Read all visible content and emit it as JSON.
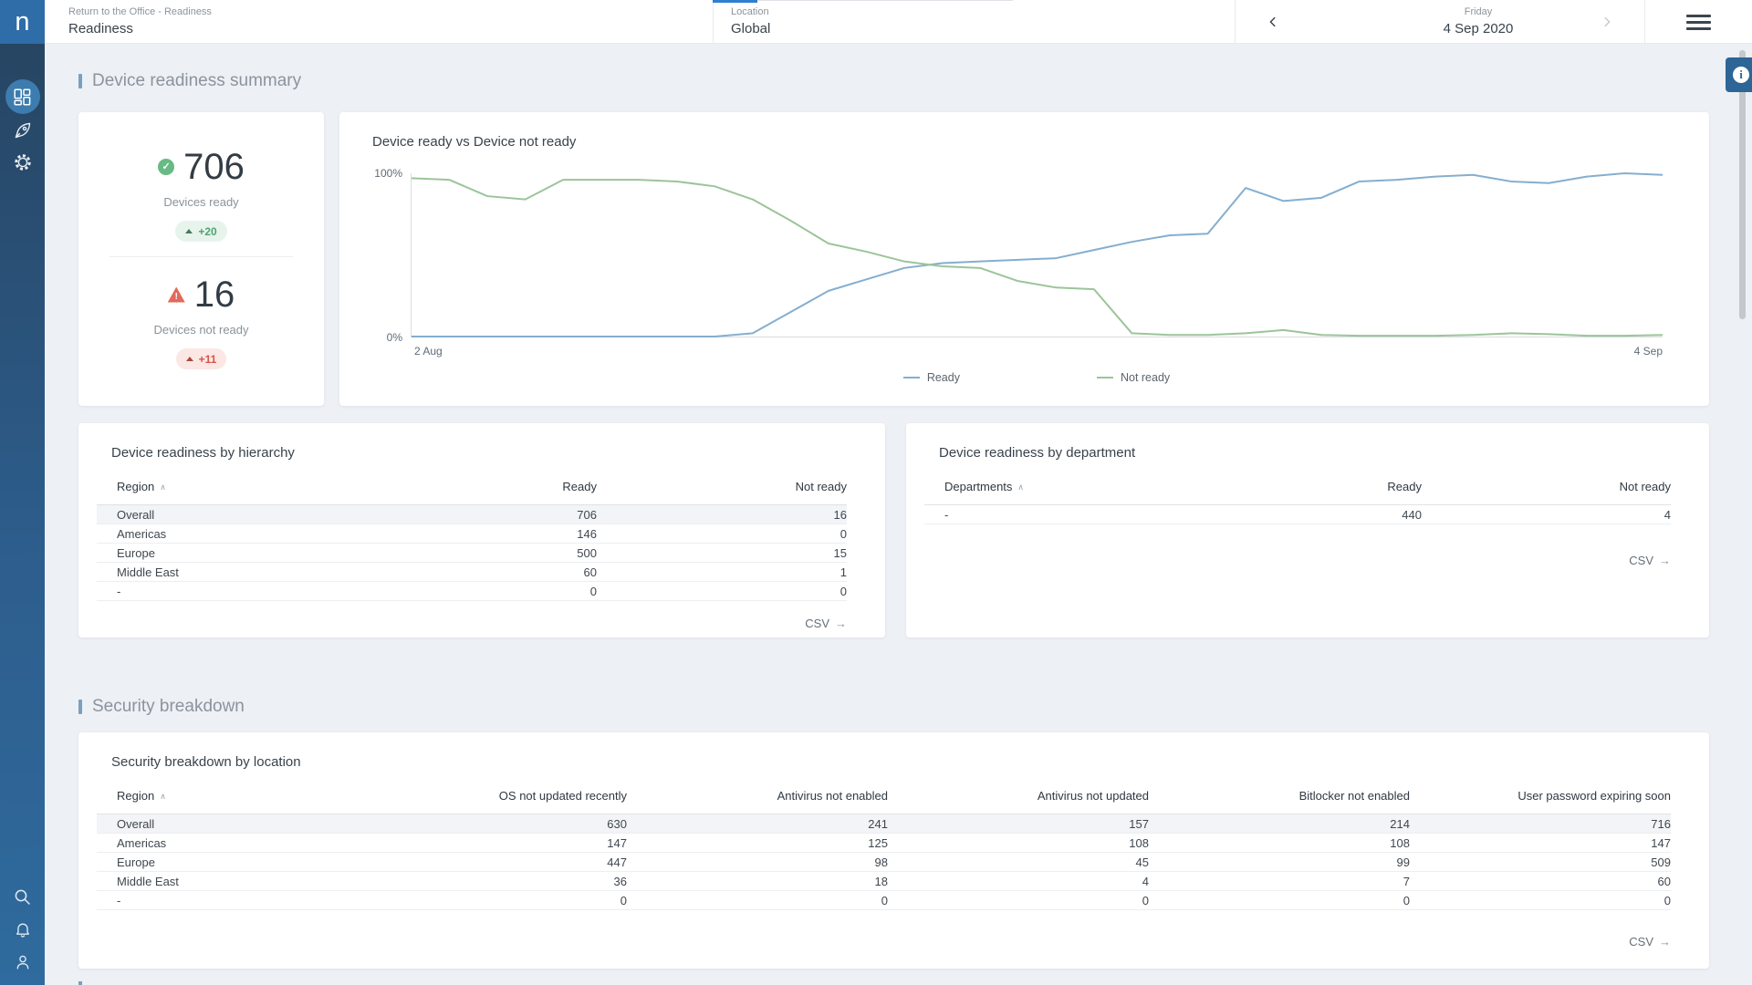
{
  "colors": {
    "accent_blue": "#2e7fd0",
    "logo_bg": "#2e6da8",
    "info_btn": "#2d6596",
    "ready_line": "#85aecf",
    "not_ready_line": "#9cc49a"
  },
  "sidebar": {
    "logo": "n"
  },
  "topbar": {
    "breadcrumb": "Return to the Office - Readiness",
    "title": "Readiness",
    "location_label": "Location",
    "location_value": "Global",
    "day_label": "Friday",
    "date_value": "4 Sep 2020"
  },
  "summary_section": {
    "title": "Device readiness summary",
    "ready_kpi": {
      "value": "706",
      "label": "Devices ready",
      "delta": "+20"
    },
    "not_ready_kpi": {
      "value": "16",
      "label": "Devices not ready",
      "delta": "+11"
    }
  },
  "chart_data": {
    "type": "line",
    "title": "Device ready vs Device not ready",
    "xlabel": "",
    "ylabel": "",
    "x_start_label": "2 Aug",
    "x_end_label": "4 Sep",
    "y_axis": {
      "min_label": "0%",
      "max_label": "100%",
      "range": [
        0,
        100
      ]
    },
    "grid": false,
    "legend_position": "bottom-center",
    "series": [
      {
        "name": "Ready",
        "color": "#85aecf",
        "unit": "%",
        "values": [
          0,
          0,
          0,
          0,
          0,
          0,
          0,
          0,
          0,
          2,
          15,
          28,
          35,
          42,
          45,
          46,
          47,
          48,
          53,
          58,
          62,
          63,
          91,
          83,
          85,
          95,
          96,
          98,
          99,
          95,
          94,
          98,
          100,
          99
        ]
      },
      {
        "name": "Not ready",
        "color": "#9cc49a",
        "unit": "%",
        "values": [
          97,
          96,
          86,
          84,
          96,
          96,
          96,
          95,
          92,
          84,
          71,
          57,
          52,
          46,
          43,
          42,
          34,
          30,
          29,
          2,
          1,
          1,
          2,
          4,
          1,
          0.5,
          0.5,
          0.5,
          1,
          2,
          1.5,
          0.5,
          0.5,
          1
        ]
      }
    ]
  },
  "hierarchy_table": {
    "title": "Device readiness by hierarchy",
    "columns": [
      "Region",
      "Ready",
      "Not ready"
    ],
    "rows": [
      [
        "Overall",
        "706",
        "16"
      ],
      [
        "Americas",
        "146",
        "0"
      ],
      [
        "Europe",
        "500",
        "15"
      ],
      [
        "Middle East",
        "60",
        "1"
      ],
      [
        "-",
        "0",
        "0"
      ]
    ],
    "csv_label": "CSV",
    "csv_arrow": "→"
  },
  "department_table": {
    "title": "Device readiness by department",
    "columns": [
      "Departments",
      "Ready",
      "Not ready"
    ],
    "rows": [
      [
        "-",
        "440",
        "4"
      ]
    ],
    "csv_label": "CSV",
    "csv_arrow": "→"
  },
  "security_section": {
    "title": "Security breakdown"
  },
  "security_table": {
    "title": "Security breakdown by location",
    "columns": [
      "Region",
      "OS not updated recently",
      "Antivirus not enabled",
      "Antivirus not updated",
      "Bitlocker not enabled",
      "User password expiring soon"
    ],
    "rows": [
      [
        "Overall",
        "630",
        "241",
        "157",
        "214",
        "716"
      ],
      [
        "Americas",
        "147",
        "125",
        "108",
        "108",
        "147"
      ],
      [
        "Europe",
        "447",
        "98",
        "45",
        "99",
        "509"
      ],
      [
        "Middle East",
        "36",
        "18",
        "4",
        "7",
        "60"
      ],
      [
        "-",
        "0",
        "0",
        "0",
        "0",
        "0"
      ]
    ],
    "csv_label": "CSV",
    "csv_arrow": "→"
  }
}
